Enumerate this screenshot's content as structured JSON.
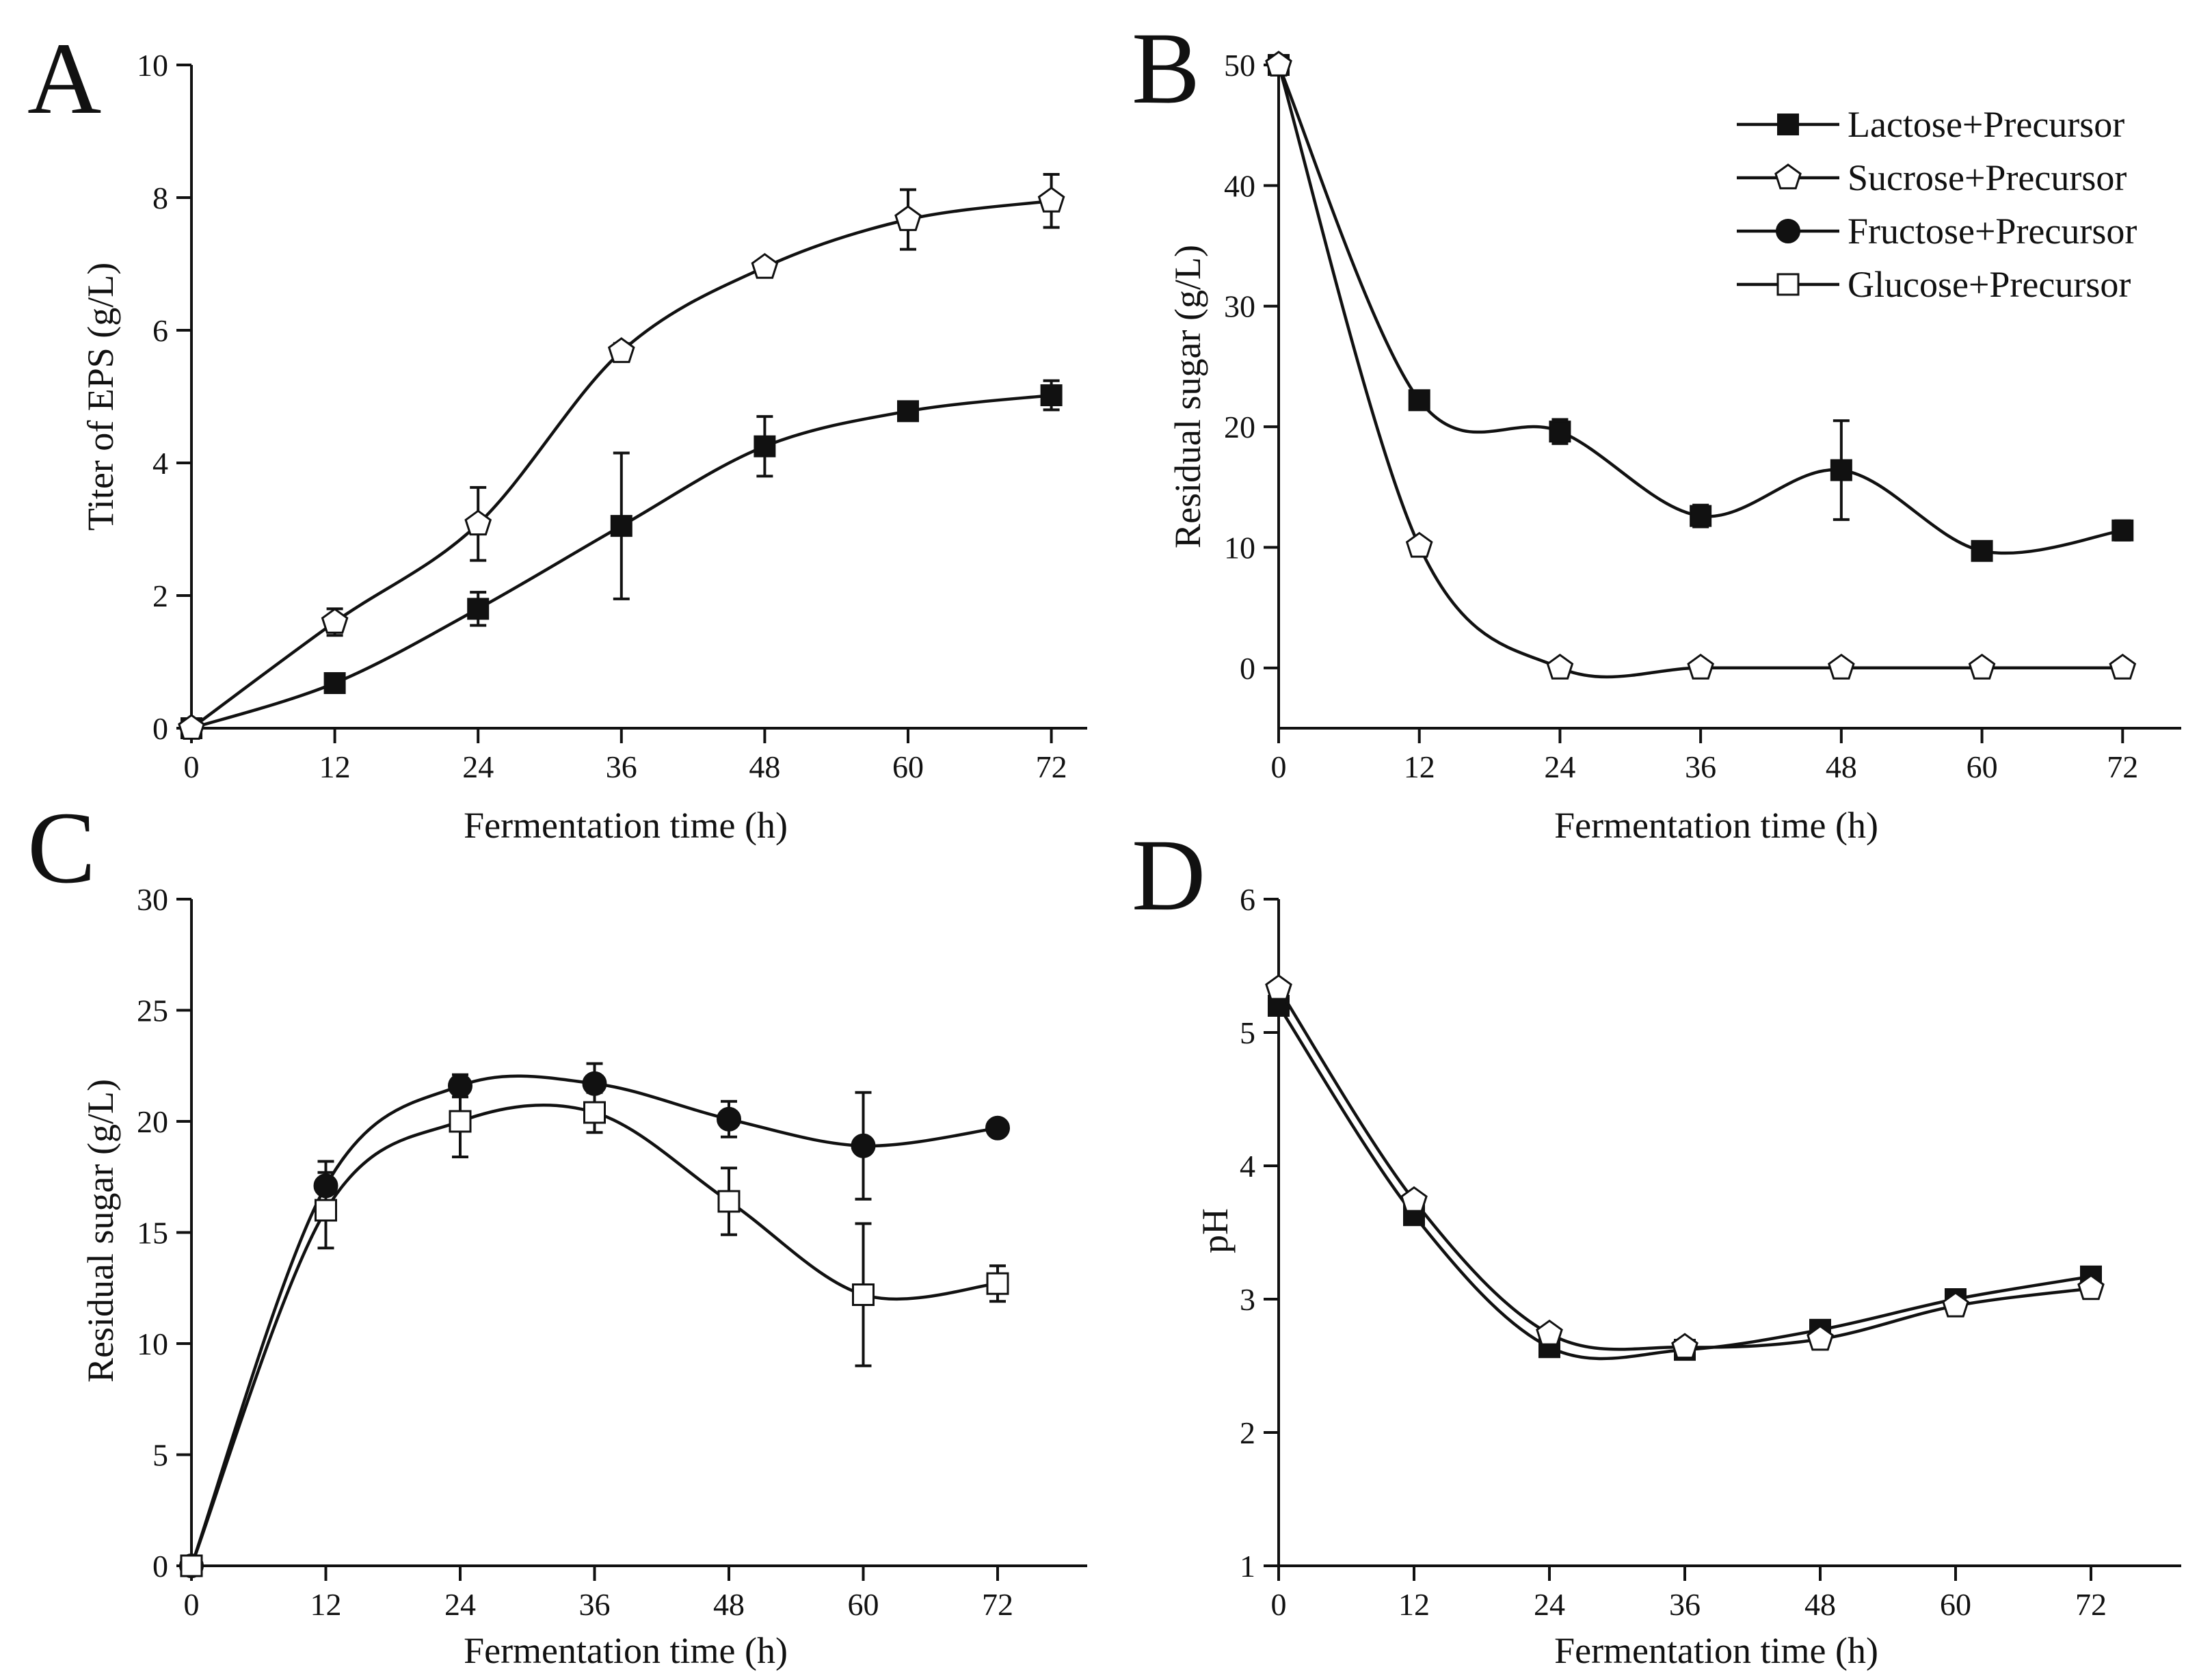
{
  "chart_data": [
    {
      "panel": "A",
      "type": "line",
      "title": "",
      "xlabel": "Fermentation time (h)",
      "ylabel": "Titer of EPS (g/L)",
      "xlim": [
        0,
        75
      ],
      "ylim": [
        0,
        10
      ],
      "xticks": [
        0,
        12,
        24,
        36,
        48,
        60,
        72
      ],
      "yticks": [
        0,
        2,
        4,
        6,
        8,
        10
      ],
      "x": [
        0,
        12,
        24,
        36,
        48,
        60,
        72
      ],
      "series": [
        {
          "name": "Lactose+Precursor",
          "marker": "square-filled",
          "values": [
            0,
            0.68,
            1.8,
            3.05,
            4.25,
            4.78,
            5.02
          ],
          "errors": [
            0,
            0.06,
            0.25,
            1.1,
            0.45,
            0.08,
            0.22
          ]
        },
        {
          "name": "Sucrose+Precursor",
          "marker": "pentagon-open",
          "values": [
            0,
            1.6,
            3.08,
            5.68,
            6.95,
            7.67,
            7.95
          ],
          "errors": [
            0,
            0.2,
            0.55,
            0.12,
            0.08,
            0.45,
            0.4
          ]
        }
      ]
    },
    {
      "panel": "B",
      "type": "line",
      "title": "",
      "xlabel": "Fermentation time (h)",
      "ylabel": "Residual sugar (g/L)",
      "xlim": [
        0,
        77
      ],
      "ylim": [
        -5,
        50
      ],
      "xticks": [
        0,
        12,
        24,
        36,
        48,
        60,
        72
      ],
      "yticks": [
        0,
        10,
        20,
        30,
        40,
        50
      ],
      "x": [
        0,
        12,
        24,
        36,
        48,
        60,
        72
      ],
      "legend_position": "top-right",
      "series": [
        {
          "name": "Lactose+Precursor",
          "marker": "square-filled",
          "values": [
            50,
            22.2,
            19.6,
            12.6,
            16.4,
            9.7,
            11.4
          ],
          "errors": [
            0,
            0.5,
            1.0,
            0.9,
            4.1,
            0.7,
            0.8
          ]
        },
        {
          "name": "Sucrose+Precursor",
          "marker": "pentagon-open",
          "values": [
            50,
            10.1,
            0,
            0,
            0,
            0,
            0
          ],
          "errors": [
            0,
            0.4,
            0,
            0,
            0,
            0,
            0
          ]
        }
      ]
    },
    {
      "panel": "C",
      "type": "line",
      "title": "",
      "xlabel": "Fermentation time (h)",
      "ylabel": "Residual sugar (g/L)",
      "xlim": [
        0,
        80
      ],
      "ylim": [
        0,
        30
      ],
      "xticks": [
        0,
        12,
        24,
        36,
        48,
        60,
        72
      ],
      "yticks": [
        0,
        5,
        10,
        15,
        20,
        25,
        30
      ],
      "x": [
        0,
        12,
        24,
        36,
        48,
        60,
        72
      ],
      "series": [
        {
          "name": "Fructose+Precursor",
          "marker": "circle-filled",
          "values": [
            0,
            17.1,
            21.6,
            21.7,
            20.1,
            18.9,
            19.7
          ],
          "errors": [
            0,
            1.1,
            0.5,
            0.9,
            0.8,
            2.4,
            0.2
          ]
        },
        {
          "name": "Glucose+Precursor",
          "marker": "square-open",
          "values": [
            0,
            16.0,
            20.0,
            20.4,
            16.4,
            12.2,
            12.7
          ],
          "errors": [
            0,
            1.7,
            1.6,
            0.9,
            1.5,
            3.2,
            0.8
          ]
        }
      ]
    },
    {
      "panel": "D",
      "type": "line",
      "title": "",
      "xlabel": "Fermentation time (h)",
      "ylabel": "pH",
      "xlim": [
        0,
        80
      ],
      "ylim": [
        1,
        6
      ],
      "xticks": [
        0,
        12,
        24,
        36,
        48,
        60,
        72
      ],
      "yticks": [
        1,
        2,
        3,
        4,
        5,
        6
      ],
      "x": [
        0,
        12,
        24,
        36,
        48,
        60,
        72
      ],
      "series": [
        {
          "name": "Lactose+Precursor",
          "marker": "square-filled",
          "values": [
            5.2,
            3.63,
            2.64,
            2.62,
            2.77,
            3.0,
            3.17
          ],
          "errors": [
            0,
            0,
            0,
            0,
            0,
            0,
            0
          ]
        },
        {
          "name": "Sucrose+Precursor",
          "marker": "pentagon-open",
          "values": [
            5.33,
            3.74,
            2.74,
            2.64,
            2.7,
            2.95,
            3.08
          ],
          "errors": [
            0,
            0,
            0,
            0,
            0,
            0,
            0
          ]
        }
      ]
    }
  ],
  "legend": [
    {
      "name": "Lactose+Precursor",
      "marker": "square-filled"
    },
    {
      "name": "Sucrose+Precursor",
      "marker": "pentagon-open"
    },
    {
      "name": "Fructose+Precursor",
      "marker": "circle-filled"
    },
    {
      "name": "Glucose+Precursor",
      "marker": "square-open"
    }
  ]
}
